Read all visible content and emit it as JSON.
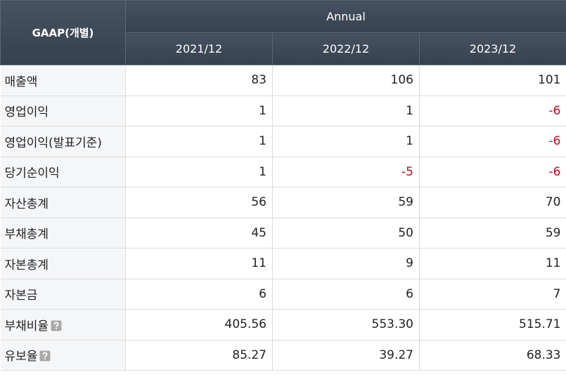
{
  "table": {
    "corner": "GAAP(개별)",
    "group": "Annual",
    "columns": [
      "2021/12",
      "2022/12",
      "2023/12"
    ],
    "rows": [
      {
        "label": "매출액",
        "cells": [
          "83",
          "106",
          "101"
        ]
      },
      {
        "label": "영업이익",
        "cells": [
          "1",
          "1",
          "-6"
        ]
      },
      {
        "label": "영업이익(발표기준)",
        "cells": [
          "1",
          "1",
          "-6"
        ]
      },
      {
        "label": "당기순이익",
        "cells": [
          "1",
          "-5",
          "-6"
        ]
      },
      {
        "label": "자산총계",
        "cells": [
          "56",
          "59",
          "70"
        ]
      },
      {
        "label": "부채총계",
        "cells": [
          "45",
          "50",
          "59"
        ]
      },
      {
        "label": "자본총계",
        "cells": [
          "11",
          "9",
          "11"
        ]
      },
      {
        "label": "자본금",
        "cells": [
          "6",
          "6",
          "7"
        ]
      },
      {
        "label": "부채비율",
        "cells": [
          "405.56",
          "553.30",
          "515.71"
        ],
        "help": true
      },
      {
        "label": "유보율",
        "cells": [
          "85.27",
          "39.27",
          "68.33"
        ],
        "help": true
      }
    ]
  }
}
